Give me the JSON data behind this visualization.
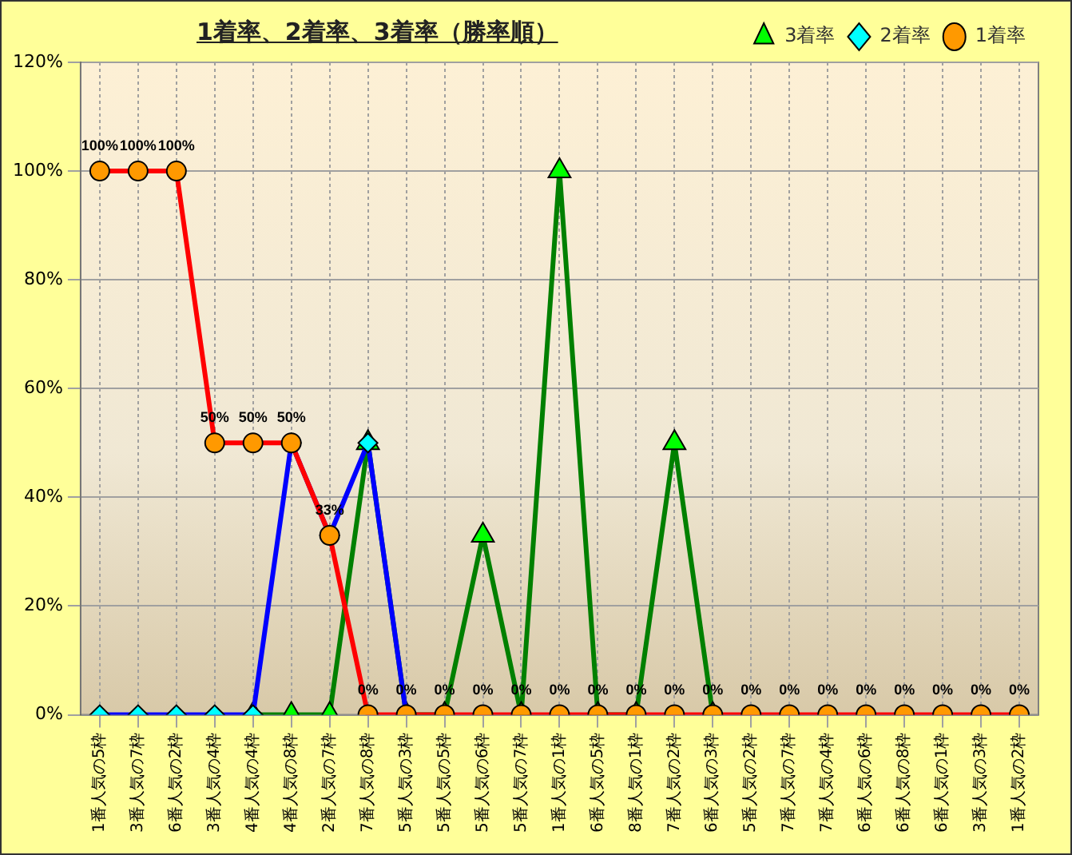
{
  "chart_data": {
    "type": "line",
    "title": "1着率、2着率、3着率（勝率順）",
    "categories": [
      "1番人気の5枠",
      "3番人気の7枠",
      "6番人気の2枠",
      "3番人気の4枠",
      "4番人気の4枠",
      "4番人気の8枠",
      "2番人気の7枠",
      "7番人気の8枠",
      "5番人気の3枠",
      "5番人気の5枠",
      "5番人気の6枠",
      "5番人気の7枠",
      "1番人気の1枠",
      "6番人気の5枠",
      "8番人気の1枠",
      "7番人気の2枠",
      "6番人気の3枠",
      "5番人気の2枠",
      "7番人気の7枠",
      "7番人気の4枠",
      "6番人気の6枠",
      "6番人気の8枠",
      "6番人気の1枠",
      "3番人気の3枠",
      "1番人気の2枠"
    ],
    "series": [
      {
        "name": "3着率",
        "color": "#008000",
        "marker": "triangle",
        "values": [
          null,
          null,
          null,
          null,
          0,
          0,
          0,
          50,
          0,
          0,
          33,
          0,
          100,
          0,
          0,
          50,
          0,
          null,
          null,
          null,
          null,
          null,
          null,
          null,
          null
        ]
      },
      {
        "name": "2着率",
        "color": "#0000ff",
        "marker": "diamond",
        "values": [
          0,
          0,
          0,
          0,
          0,
          50,
          33,
          50,
          0,
          null,
          null,
          null,
          null,
          null,
          null,
          null,
          null,
          null,
          null,
          null,
          null,
          null,
          null,
          null,
          null
        ]
      },
      {
        "name": "1着率",
        "color": "#ff0000",
        "marker": "circle",
        "values": [
          100,
          100,
          100,
          50,
          50,
          50,
          33,
          0,
          0,
          0,
          0,
          0,
          0,
          0,
          0,
          0,
          0,
          0,
          0,
          0,
          0,
          0,
          0,
          0,
          0
        ],
        "value_labels": [
          "100%",
          "100%",
          "100%",
          "50%",
          "50%",
          "50%",
          "33%",
          "0%",
          "0%",
          "0%",
          "0%",
          "0%",
          "0%",
          "0%",
          "0%",
          "0%",
          "0%",
          "0%",
          "0%",
          "0%",
          "0%",
          "0%",
          "0%",
          "0%",
          "0%"
        ]
      }
    ],
    "ylim": [
      0,
      120
    ],
    "yticks": [
      {
        "value": 0,
        "label": "0%"
      },
      {
        "value": 20,
        "label": "20%"
      },
      {
        "value": 40,
        "label": "40%"
      },
      {
        "value": 60,
        "label": "60%"
      },
      {
        "value": 80,
        "label": "80%"
      },
      {
        "value": 100,
        "label": "100%"
      },
      {
        "value": 120,
        "label": "120%"
      }
    ],
    "grid": true,
    "legend": "top right",
    "line_style": "solid"
  }
}
